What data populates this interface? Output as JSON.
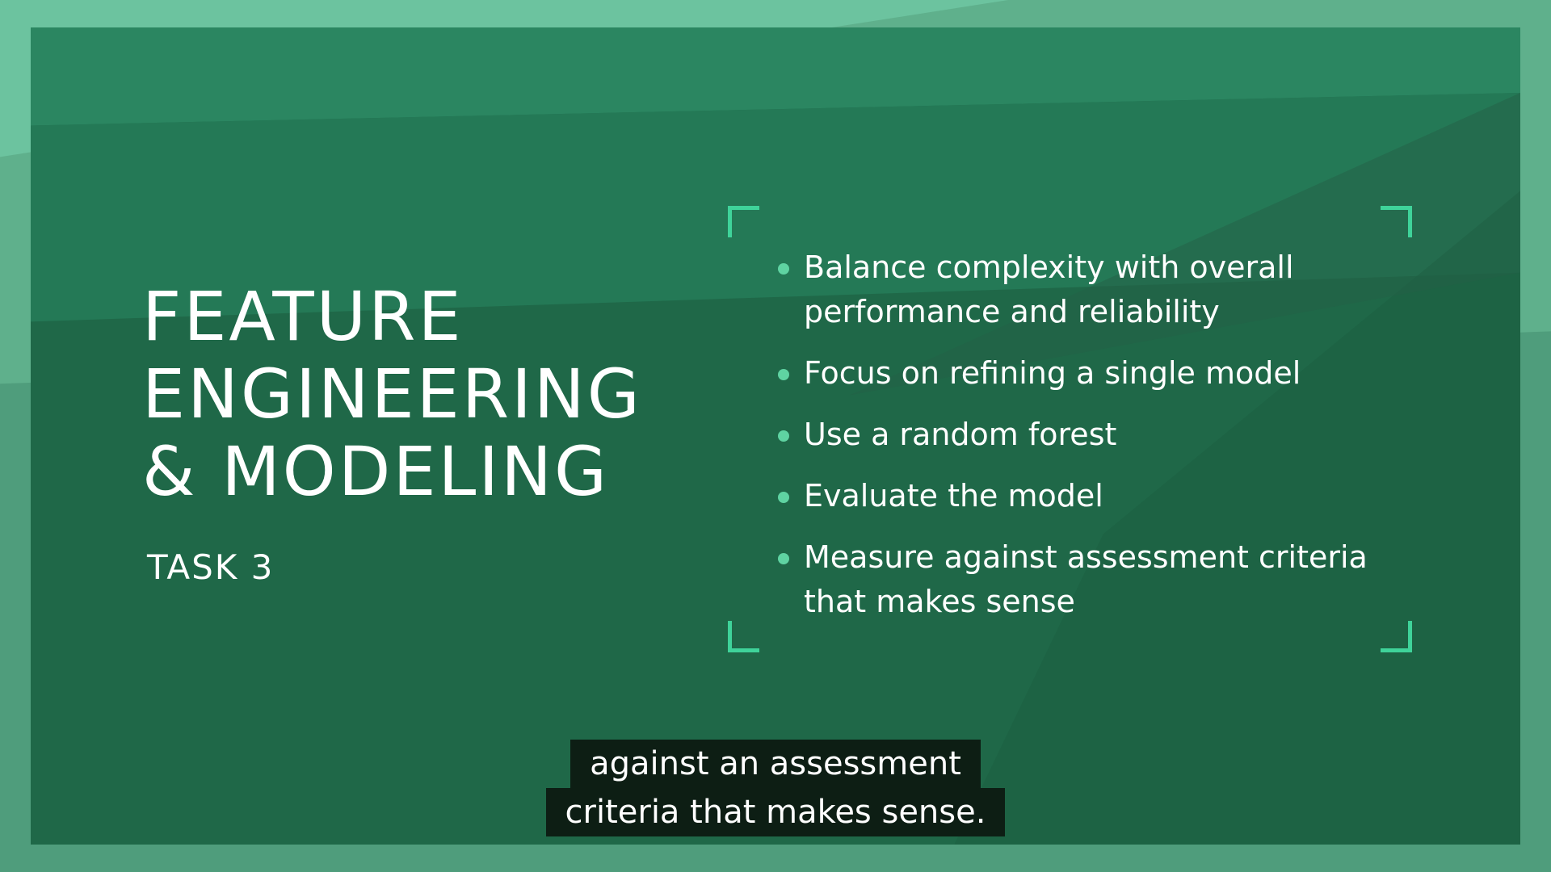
{
  "slide": {
    "title_lines": [
      "FEATURE",
      "ENGINEERING",
      "& MODELING"
    ],
    "subtitle": "TASK 3",
    "bullets": [
      "Balance complexity with overall performance and reliability",
      "Focus on refining a single model",
      "Use a random forest",
      "Evaluate the model",
      "Measure against assessment criteria that makes sense"
    ]
  },
  "caption": {
    "lines": [
      "against an assessment",
      "criteria that makes sense."
    ]
  },
  "colors": {
    "panel": "#1f6848",
    "frame": "#5fb08c",
    "accent": "#3fd39a",
    "caption_bg": "#0d1e14",
    "text": "#ffffff"
  }
}
